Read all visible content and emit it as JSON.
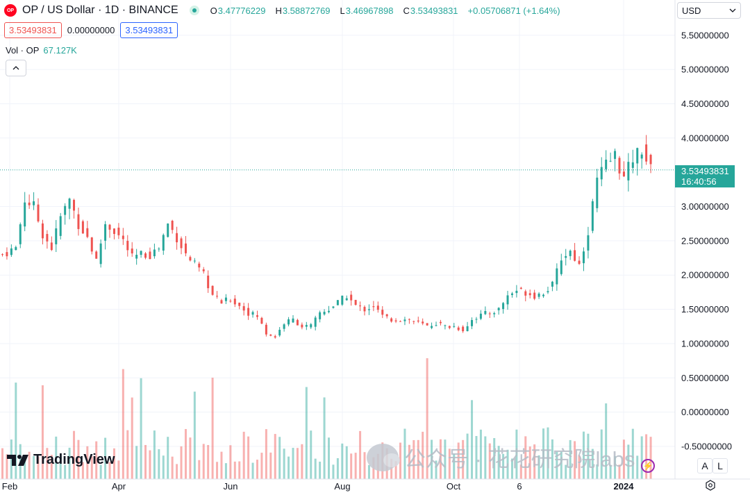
{
  "header": {
    "logo_text": "OP",
    "title": "OP / US Dollar · 1D · BINANCE",
    "ohlc": [
      {
        "k": "O",
        "v": "3.47776229"
      },
      {
        "k": "H",
        "v": "3.58872769"
      },
      {
        "k": "L",
        "v": "3.46967898"
      },
      {
        "k": "C",
        "v": "3.53493831"
      }
    ],
    "change": "+0.05706871 (+1.64%)"
  },
  "price_boxes": {
    "bid": "3.53493831",
    "spread": "0.00000000",
    "ask": "3.53493831"
  },
  "volume_legend": {
    "name": "Vol · OP",
    "value": "67.127K"
  },
  "collapse_icon": "chevron-up-icon",
  "currency_select": {
    "value": "USD"
  },
  "last_price_tag": {
    "price": "3.53493831",
    "countdown": "16:40:56"
  },
  "brand": "TradingView",
  "watermark": "公众号 · 花花研究院labs",
  "buttons": {
    "auto": "A",
    "log": "L"
  },
  "colors": {
    "up": "#26a69a",
    "down": "#ef5350",
    "grid": "#f0f3fa",
    "text": "#131722",
    "price_line": "#26a69a"
  },
  "chart_data": {
    "type": "candlestick",
    "symbol": "OP / US Dollar",
    "interval": "1D",
    "exchange": "BINANCE",
    "x_labels": [
      "Feb",
      "Apr",
      "Jun",
      "Aug",
      "Oct",
      "6",
      "2024"
    ],
    "y_ticks": [
      "5.50000000",
      "5.00000000",
      "4.50000000",
      "4.00000000",
      "3.00000000",
      "2.50000000",
      "2.00000000",
      "1.50000000",
      "1.00000000",
      "0.50000000",
      "0.00000000",
      "-0.50000000"
    ],
    "y_tick_values": [
      5.5,
      5.0,
      4.5,
      4.0,
      3.0,
      2.5,
      2.0,
      1.5,
      1.0,
      0.5,
      0.0,
      -0.5
    ],
    "ylim": [
      -0.95,
      5.95
    ],
    "last_price": 3.53493831,
    "trend": [
      [
        0,
        2.3
      ],
      [
        3,
        2.4
      ],
      [
        5,
        3.1
      ],
      [
        7,
        3.0
      ],
      [
        9,
        2.6
      ],
      [
        11,
        2.4
      ],
      [
        13,
        2.85
      ],
      [
        15,
        3.1
      ],
      [
        17,
        2.75
      ],
      [
        19,
        2.55
      ],
      [
        21,
        2.2
      ],
      [
        23,
        2.75
      ],
      [
        25,
        2.65
      ],
      [
        27,
        2.5
      ],
      [
        29,
        2.25
      ],
      [
        31,
        2.3
      ],
      [
        33,
        2.3
      ],
      [
        35,
        2.4
      ],
      [
        37,
        2.75
      ],
      [
        39,
        2.55
      ],
      [
        41,
        2.3
      ],
      [
        43,
        2.15
      ],
      [
        45,
        2.0
      ],
      [
        47,
        1.7
      ],
      [
        49,
        1.6
      ],
      [
        51,
        1.65
      ],
      [
        53,
        1.55
      ],
      [
        55,
        1.45
      ],
      [
        57,
        1.4
      ],
      [
        59,
        1.15
      ],
      [
        61,
        1.1
      ],
      [
        63,
        1.3
      ],
      [
        65,
        1.35
      ],
      [
        67,
        1.25
      ],
      [
        69,
        1.25
      ],
      [
        71,
        1.45
      ],
      [
        73,
        1.5
      ],
      [
        75,
        1.6
      ],
      [
        77,
        1.7
      ],
      [
        79,
        1.55
      ],
      [
        81,
        1.5
      ],
      [
        83,
        1.55
      ],
      [
        85,
        1.4
      ],
      [
        87,
        1.35
      ],
      [
        89,
        1.35
      ],
      [
        91,
        1.35
      ],
      [
        93,
        1.3
      ],
      [
        95,
        1.25
      ],
      [
        97,
        1.3
      ],
      [
        99,
        1.25
      ],
      [
        101,
        1.25
      ],
      [
        103,
        1.2
      ],
      [
        105,
        1.35
      ],
      [
        107,
        1.42
      ],
      [
        109,
        1.45
      ],
      [
        111,
        1.5
      ],
      [
        113,
        1.7
      ],
      [
        115,
        1.78
      ],
      [
        117,
        1.75
      ],
      [
        119,
        1.7
      ],
      [
        121,
        1.75
      ],
      [
        123,
        1.85
      ],
      [
        125,
        2.25
      ],
      [
        127,
        2.35
      ],
      [
        129,
        2.15
      ],
      [
        131,
        2.65
      ],
      [
        133,
        3.4
      ],
      [
        135,
        3.6
      ],
      [
        137,
        3.75
      ],
      [
        139,
        3.4
      ],
      [
        141,
        3.7
      ],
      [
        143,
        3.85
      ],
      [
        145,
        3.53
      ]
    ],
    "volume_shown": true
  }
}
